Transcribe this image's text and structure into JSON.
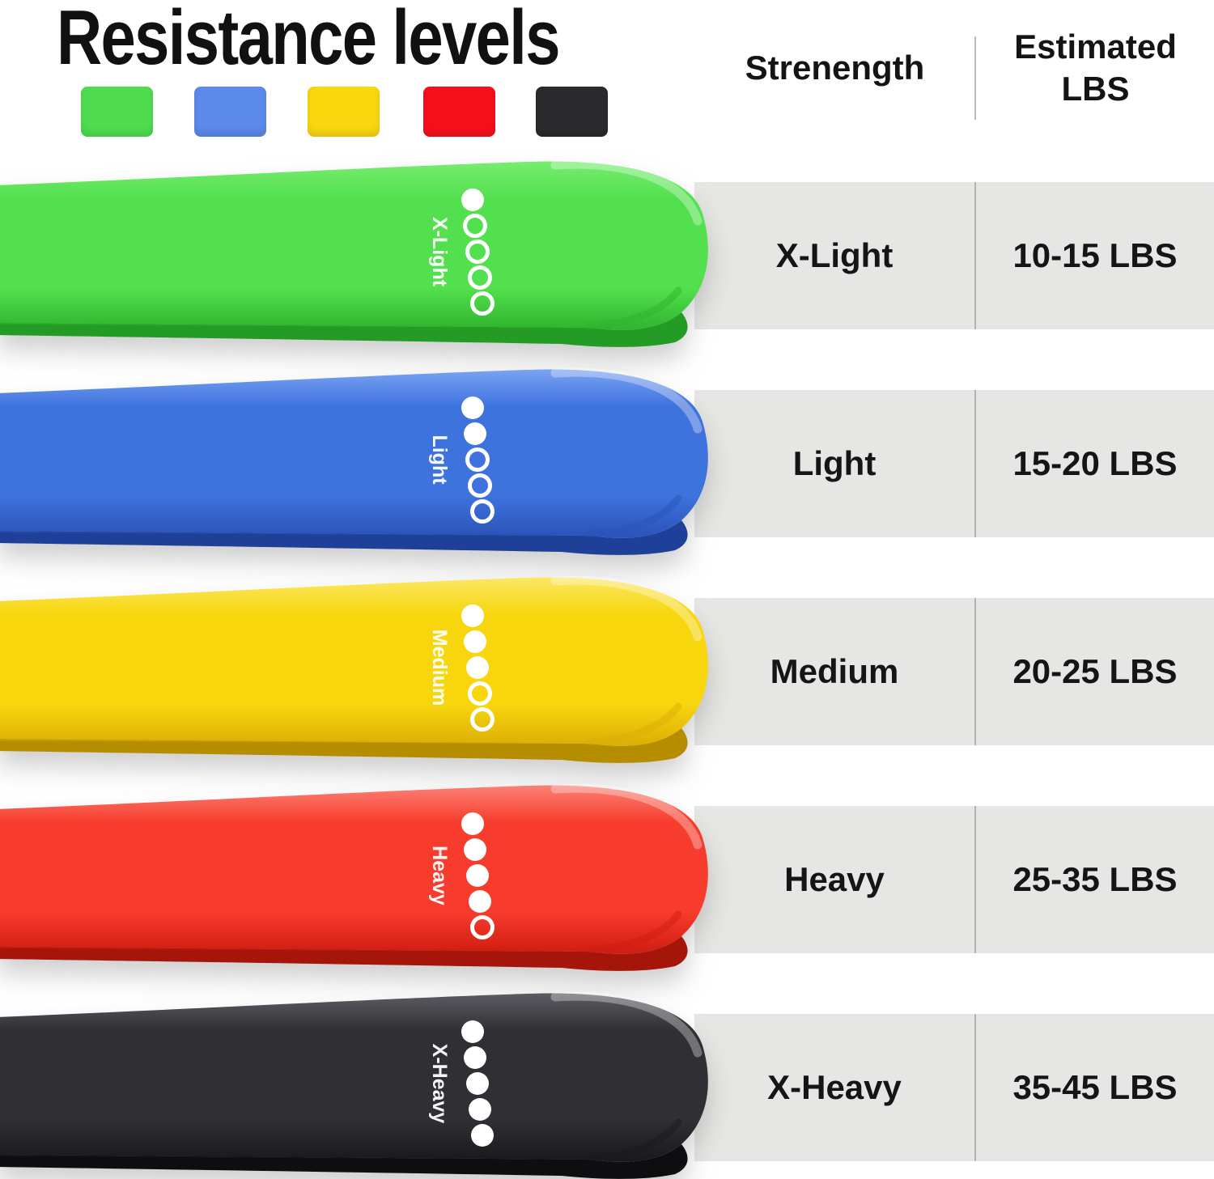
{
  "title": "Resistance levels",
  "legend_swatches": [
    {
      "name": "green",
      "color": "#50dc50"
    },
    {
      "name": "blue",
      "color": "#5c8aec"
    },
    {
      "name": "yellow",
      "color": "#f9d70f"
    },
    {
      "name": "red",
      "color": "#f6101c"
    },
    {
      "name": "black",
      "color": "#2b2b2d"
    }
  ],
  "table": {
    "strength_header": "Strenength",
    "lbs_header": "Estimated LBS",
    "row_bg": "#e6e6e4",
    "divider_color": "#b2b2b0",
    "rows": [
      {
        "strength": "X-Light",
        "lbs": "10-15 LBS"
      },
      {
        "strength": "Light",
        "lbs": "15-20 LBS"
      },
      {
        "strength": "Medium",
        "lbs": "20-25 LBS"
      },
      {
        "strength": "Heavy",
        "lbs": "25-35 LBS"
      },
      {
        "strength": "X-Heavy",
        "lbs": "35-45 LBS"
      }
    ]
  },
  "bands": [
    {
      "label": "X-Light",
      "filled_dots": 1,
      "total_dots": 5,
      "colors": {
        "light": "#77ec70",
        "main": "#53e04e",
        "deep": "#2fb42e",
        "under": "#249b24"
      }
    },
    {
      "label": "Light",
      "filled_dots": 2,
      "total_dots": 5,
      "colors": {
        "light": "#7aa3f2",
        "main": "#3e72dd",
        "deep": "#2a53b8",
        "under": "#1e4099"
      }
    },
    {
      "label": "Medium",
      "filled_dots": 3,
      "total_dots": 5,
      "colors": {
        "light": "#fbe763",
        "main": "#f7d60e",
        "deep": "#dcae05",
        "under": "#b78d00"
      }
    },
    {
      "label": "Heavy",
      "filled_dots": 4,
      "total_dots": 5,
      "colors": {
        "light": "#fb8175",
        "main": "#f73b2c",
        "deep": "#cf1d10",
        "under": "#a6150a"
      }
    },
    {
      "label": "X-Heavy",
      "filled_dots": 5,
      "total_dots": 5,
      "colors": {
        "light": "#5c5c63",
        "main": "#303034",
        "deep": "#19191c",
        "under": "#0e0e10"
      }
    }
  ]
}
